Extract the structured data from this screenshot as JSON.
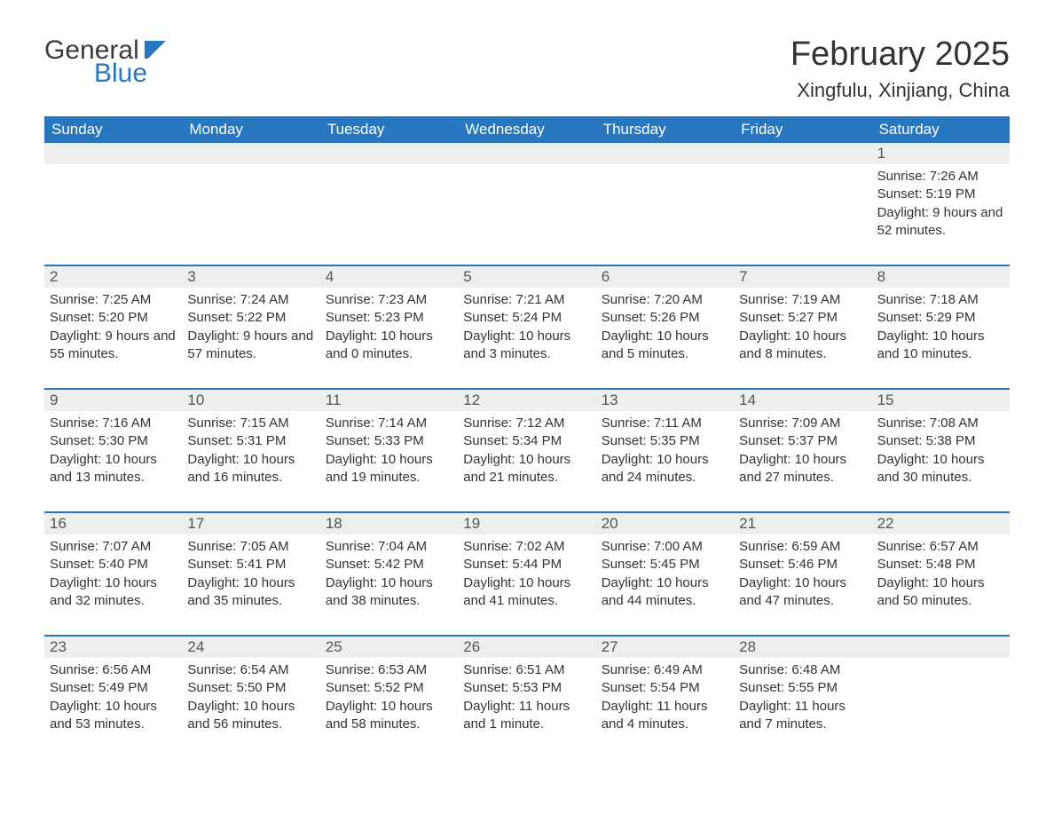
{
  "logo": {
    "text_general": "General",
    "text_blue": "Blue"
  },
  "title": "February 2025",
  "location": "Xingfulu, Xinjiang, China",
  "colors": {
    "header_bg": "#2676c0",
    "header_text": "#ffffff",
    "daynum_bg": "#eeeeee",
    "week_border": "#2676c0",
    "body_text": "#333333"
  },
  "week_days": [
    "Sunday",
    "Monday",
    "Tuesday",
    "Wednesday",
    "Thursday",
    "Friday",
    "Saturday"
  ],
  "weeks": [
    [
      {
        "day": "",
        "sunrise": "",
        "sunset": "",
        "daylight": ""
      },
      {
        "day": "",
        "sunrise": "",
        "sunset": "",
        "daylight": ""
      },
      {
        "day": "",
        "sunrise": "",
        "sunset": "",
        "daylight": ""
      },
      {
        "day": "",
        "sunrise": "",
        "sunset": "",
        "daylight": ""
      },
      {
        "day": "",
        "sunrise": "",
        "sunset": "",
        "daylight": ""
      },
      {
        "day": "",
        "sunrise": "",
        "sunset": "",
        "daylight": ""
      },
      {
        "day": "1",
        "sunrise": "Sunrise: 7:26 AM",
        "sunset": "Sunset: 5:19 PM",
        "daylight": "Daylight: 9 hours and 52 minutes."
      }
    ],
    [
      {
        "day": "2",
        "sunrise": "Sunrise: 7:25 AM",
        "sunset": "Sunset: 5:20 PM",
        "daylight": "Daylight: 9 hours and 55 minutes."
      },
      {
        "day": "3",
        "sunrise": "Sunrise: 7:24 AM",
        "sunset": "Sunset: 5:22 PM",
        "daylight": "Daylight: 9 hours and 57 minutes."
      },
      {
        "day": "4",
        "sunrise": "Sunrise: 7:23 AM",
        "sunset": "Sunset: 5:23 PM",
        "daylight": "Daylight: 10 hours and 0 minutes."
      },
      {
        "day": "5",
        "sunrise": "Sunrise: 7:21 AM",
        "sunset": "Sunset: 5:24 PM",
        "daylight": "Daylight: 10 hours and 3 minutes."
      },
      {
        "day": "6",
        "sunrise": "Sunrise: 7:20 AM",
        "sunset": "Sunset: 5:26 PM",
        "daylight": "Daylight: 10 hours and 5 minutes."
      },
      {
        "day": "7",
        "sunrise": "Sunrise: 7:19 AM",
        "sunset": "Sunset: 5:27 PM",
        "daylight": "Daylight: 10 hours and 8 minutes."
      },
      {
        "day": "8",
        "sunrise": "Sunrise: 7:18 AM",
        "sunset": "Sunset: 5:29 PM",
        "daylight": "Daylight: 10 hours and 10 minutes."
      }
    ],
    [
      {
        "day": "9",
        "sunrise": "Sunrise: 7:16 AM",
        "sunset": "Sunset: 5:30 PM",
        "daylight": "Daylight: 10 hours and 13 minutes."
      },
      {
        "day": "10",
        "sunrise": "Sunrise: 7:15 AM",
        "sunset": "Sunset: 5:31 PM",
        "daylight": "Daylight: 10 hours and 16 minutes."
      },
      {
        "day": "11",
        "sunrise": "Sunrise: 7:14 AM",
        "sunset": "Sunset: 5:33 PM",
        "daylight": "Daylight: 10 hours and 19 minutes."
      },
      {
        "day": "12",
        "sunrise": "Sunrise: 7:12 AM",
        "sunset": "Sunset: 5:34 PM",
        "daylight": "Daylight: 10 hours and 21 minutes."
      },
      {
        "day": "13",
        "sunrise": "Sunrise: 7:11 AM",
        "sunset": "Sunset: 5:35 PM",
        "daylight": "Daylight: 10 hours and 24 minutes."
      },
      {
        "day": "14",
        "sunrise": "Sunrise: 7:09 AM",
        "sunset": "Sunset: 5:37 PM",
        "daylight": "Daylight: 10 hours and 27 minutes."
      },
      {
        "day": "15",
        "sunrise": "Sunrise: 7:08 AM",
        "sunset": "Sunset: 5:38 PM",
        "daylight": "Daylight: 10 hours and 30 minutes."
      }
    ],
    [
      {
        "day": "16",
        "sunrise": "Sunrise: 7:07 AM",
        "sunset": "Sunset: 5:40 PM",
        "daylight": "Daylight: 10 hours and 32 minutes."
      },
      {
        "day": "17",
        "sunrise": "Sunrise: 7:05 AM",
        "sunset": "Sunset: 5:41 PM",
        "daylight": "Daylight: 10 hours and 35 minutes."
      },
      {
        "day": "18",
        "sunrise": "Sunrise: 7:04 AM",
        "sunset": "Sunset: 5:42 PM",
        "daylight": "Daylight: 10 hours and 38 minutes."
      },
      {
        "day": "19",
        "sunrise": "Sunrise: 7:02 AM",
        "sunset": "Sunset: 5:44 PM",
        "daylight": "Daylight: 10 hours and 41 minutes."
      },
      {
        "day": "20",
        "sunrise": "Sunrise: 7:00 AM",
        "sunset": "Sunset: 5:45 PM",
        "daylight": "Daylight: 10 hours and 44 minutes."
      },
      {
        "day": "21",
        "sunrise": "Sunrise: 6:59 AM",
        "sunset": "Sunset: 5:46 PM",
        "daylight": "Daylight: 10 hours and 47 minutes."
      },
      {
        "day": "22",
        "sunrise": "Sunrise: 6:57 AM",
        "sunset": "Sunset: 5:48 PM",
        "daylight": "Daylight: 10 hours and 50 minutes."
      }
    ],
    [
      {
        "day": "23",
        "sunrise": "Sunrise: 6:56 AM",
        "sunset": "Sunset: 5:49 PM",
        "daylight": "Daylight: 10 hours and 53 minutes."
      },
      {
        "day": "24",
        "sunrise": "Sunrise: 6:54 AM",
        "sunset": "Sunset: 5:50 PM",
        "daylight": "Daylight: 10 hours and 56 minutes."
      },
      {
        "day": "25",
        "sunrise": "Sunrise: 6:53 AM",
        "sunset": "Sunset: 5:52 PM",
        "daylight": "Daylight: 10 hours and 58 minutes."
      },
      {
        "day": "26",
        "sunrise": "Sunrise: 6:51 AM",
        "sunset": "Sunset: 5:53 PM",
        "daylight": "Daylight: 11 hours and 1 minute."
      },
      {
        "day": "27",
        "sunrise": "Sunrise: 6:49 AM",
        "sunset": "Sunset: 5:54 PM",
        "daylight": "Daylight: 11 hours and 4 minutes."
      },
      {
        "day": "28",
        "sunrise": "Sunrise: 6:48 AM",
        "sunset": "Sunset: 5:55 PM",
        "daylight": "Daylight: 11 hours and 7 minutes."
      },
      {
        "day": "",
        "sunrise": "",
        "sunset": "",
        "daylight": ""
      }
    ]
  ]
}
